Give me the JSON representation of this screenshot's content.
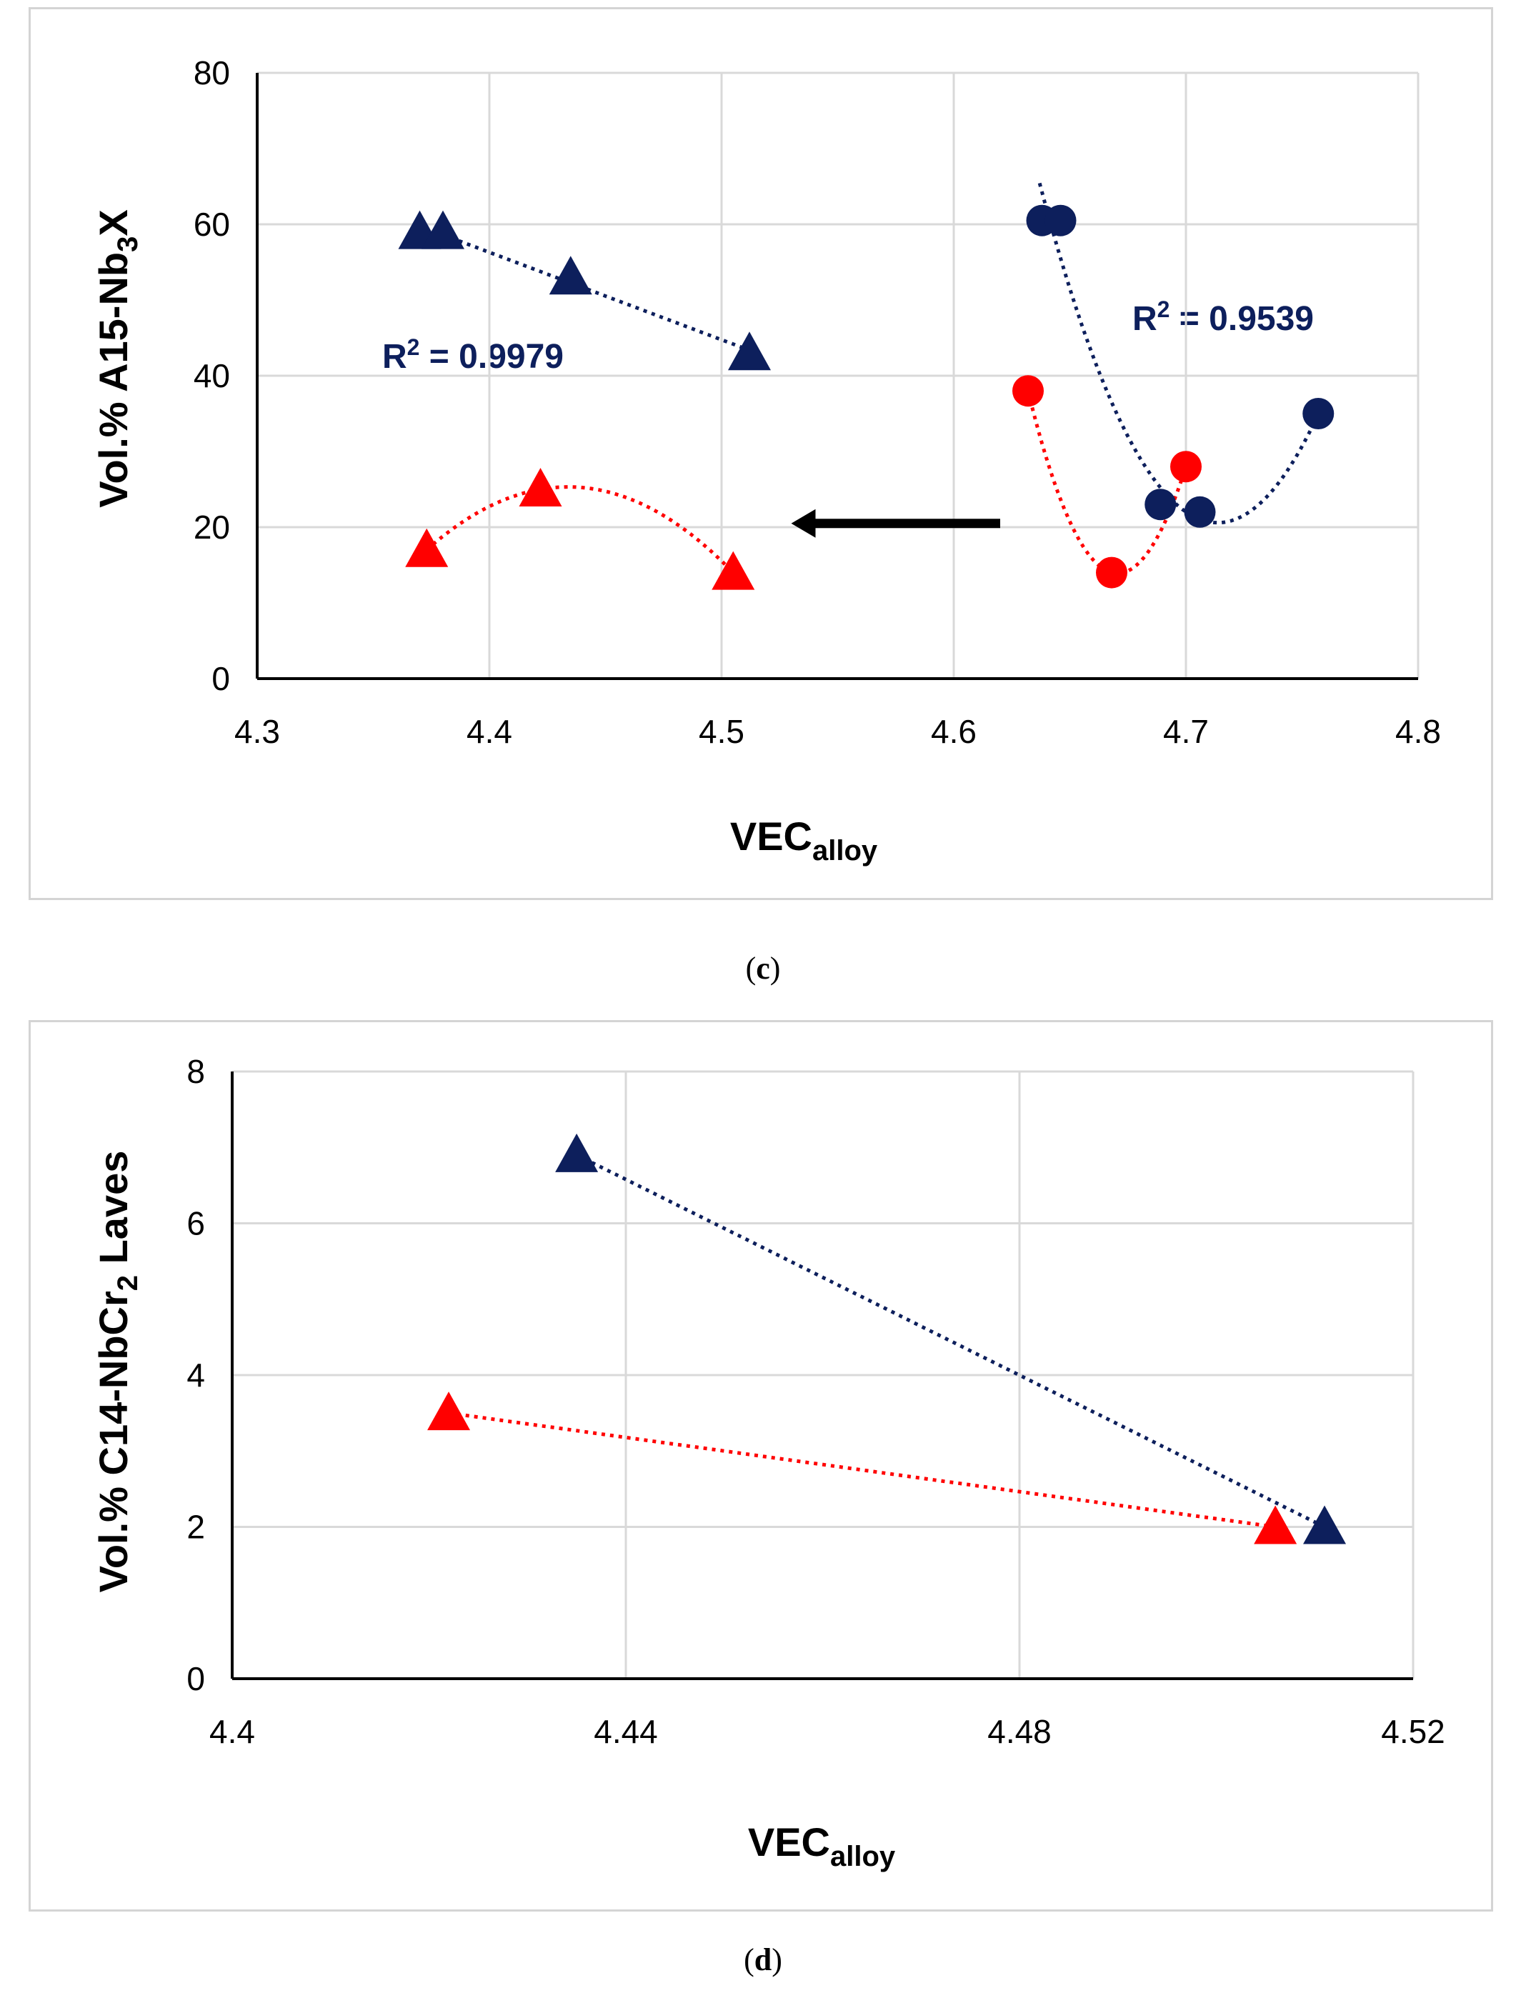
{
  "colors": {
    "navy": "#0d1f5c",
    "red": "#ff0000",
    "grid": "#d9d9d9",
    "axis": "#000000"
  },
  "chart_data": [
    {
      "panel": "c",
      "type": "scatter",
      "caption_letter": "c",
      "xlabel_main": "VEC",
      "xlabel_sub": "alloy",
      "ylabel_pre": "Vol.% A15-Nb",
      "ylabel_sub": "3",
      "ylabel_post": "X",
      "xlim": [
        4.3,
        4.8
      ],
      "ylim": [
        0,
        80
      ],
      "xticks": [
        "4.3",
        "4.4",
        "4.5",
        "4.6",
        "4.7",
        "4.8"
      ],
      "yticks": [
        "0",
        "20",
        "40",
        "60",
        "80"
      ],
      "grid": true,
      "annotations": [
        {
          "text_main": "R",
          "text_sup": "2",
          "text_post": " = 0.9979"
        },
        {
          "text_main": "R",
          "text_sup": "2",
          "text_post": " = 0.9539"
        }
      ],
      "arrow": {
        "from": [
          4.62,
          20.5
        ],
        "to": [
          4.53,
          20.5
        ]
      },
      "series": [
        {
          "marker": "triangle",
          "color": "navy",
          "points": [
            [
              4.37,
              59
            ],
            [
              4.38,
              59
            ],
            [
              4.435,
              53
            ],
            [
              4.512,
              43
            ]
          ],
          "trend": "linear",
          "trend_x": [
            4.38,
            4.512
          ]
        },
        {
          "marker": "triangle",
          "color": "red",
          "points": [
            [
              4.373,
              17
            ],
            [
              4.422,
              25
            ],
            [
              4.505,
              14
            ]
          ],
          "trend": "poly2",
          "trend_x": [
            4.373,
            4.505
          ]
        },
        {
          "marker": "circle",
          "color": "navy",
          "points": [
            [
              4.638,
              60.5
            ],
            [
              4.646,
              60.5
            ],
            [
              4.689,
              23
            ],
            [
              4.706,
              22
            ],
            [
              4.757,
              35
            ]
          ],
          "trend": "poly2",
          "trend_x": [
            4.637,
            4.757
          ]
        },
        {
          "marker": "circle",
          "color": "red",
          "points": [
            [
              4.632,
              38
            ],
            [
              4.668,
              14
            ],
            [
              4.7,
              28
            ]
          ],
          "trend": "poly2",
          "trend_x": [
            4.632,
            4.7
          ]
        }
      ]
    },
    {
      "panel": "d",
      "type": "scatter",
      "caption_letter": "d",
      "xlabel_main": "VEC",
      "xlabel_sub": "alloy",
      "ylabel_pre": "Vol.% C14-NbCr",
      "ylabel_sub": "2",
      "ylabel_post": " Laves",
      "xlim": [
        4.4,
        4.52
      ],
      "ylim": [
        0,
        8
      ],
      "xticks": [
        "4.4",
        "4.44",
        "4.48",
        "4.52"
      ],
      "yticks": [
        "0",
        "2",
        "4",
        "6",
        "8"
      ],
      "grid": true,
      "series": [
        {
          "marker": "triangle",
          "color": "navy",
          "points": [
            [
              4.435,
              6.9
            ],
            [
              4.511,
              2.0
            ]
          ],
          "trend": "linear",
          "trend_x": [
            4.435,
            4.511
          ]
        },
        {
          "marker": "triangle",
          "color": "red",
          "points": [
            [
              4.422,
              3.5
            ],
            [
              4.506,
              2.0
            ]
          ],
          "trend": "linear",
          "trend_x": [
            4.422,
            4.506
          ]
        }
      ]
    }
  ]
}
